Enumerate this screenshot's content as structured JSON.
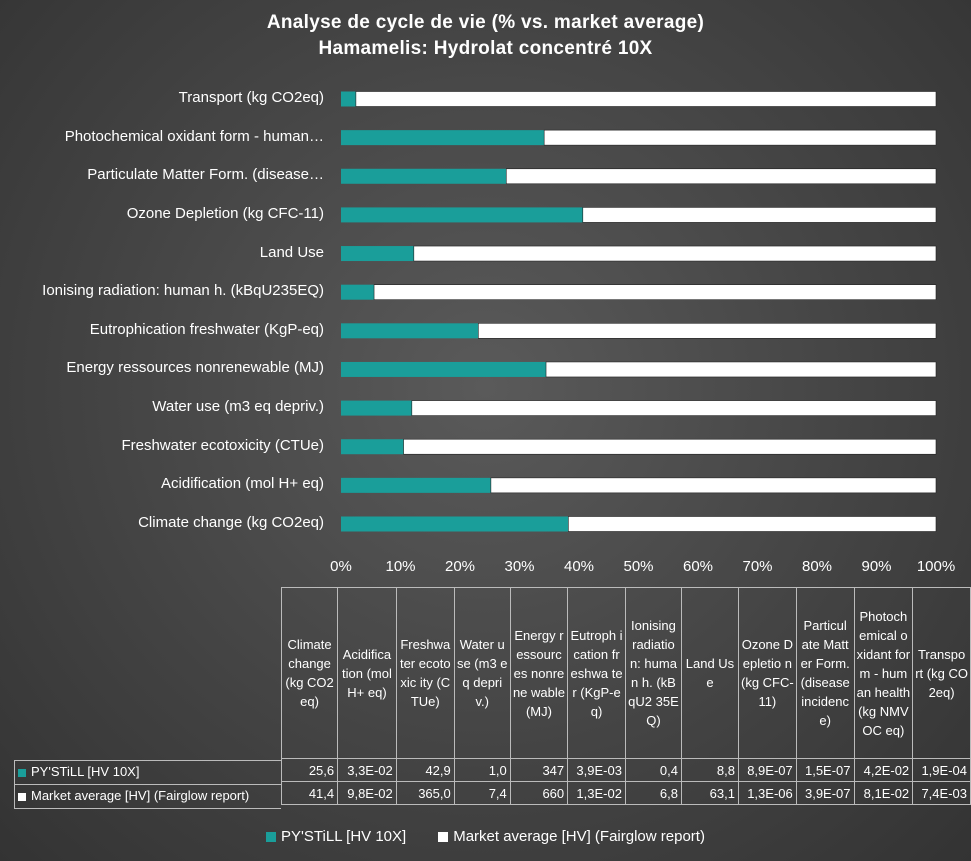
{
  "chart_data": {
    "type": "bar",
    "stacking": "percent",
    "orientation": "horizontal",
    "title": [
      "Analyse de cycle de vie  (% vs. market average)",
      "Hamamelis: Hydrolat concentré 10X"
    ],
    "categories": [
      "Climate change (kg CO2eq)",
      "Acidification (mol H+ eq)",
      "Freshwater ecotoxicity (CTUe)",
      "Water use (m3 eq depriv.)",
      "Energy ressources nonrenewable (MJ)",
      "Eutrophication freshwater (KgP-eq)",
      "Ionising radiation: human h. (kBqU235EQ)",
      "Land Use",
      "Ozone Depletion (kg CFC-11)",
      "Particulate Matter Form. (disease…",
      "Photochemical oxidant form - human…",
      "Transport (kg CO2eq)"
    ],
    "table_headers": [
      "Climate change (kg CO2eq)",
      "Acidifica tion (mol H+ eq)",
      "Freshwa ter ecotoxic ity (CTUe)",
      "Water use (m3 eq depriv.)",
      "Energy ressourc es nonrene wable (MJ)",
      "Eutroph ication freshwa ter (KgP-eq)",
      "Ionising radiatio n: human h. (kBqU2 35EQ)",
      "Land Use",
      "Ozone Depletio n (kg CFC-11)",
      "Particul ate Matter Form. (disease incidenc e)",
      "Photoch emical oxidant form - human health (kg NMVOC eq)",
      "Transpo rt (kg CO2eq)"
    ],
    "series": [
      {
        "name": "PY'STiLL [HV 10X]",
        "color": "#1a9e9a",
        "values": [
          25.6,
          0.033,
          42.9,
          1.0,
          347,
          0.0039,
          0.4,
          8.8,
          8.9e-07,
          1.5e-07,
          0.042,
          0.00019
        ],
        "labels": [
          "25,6",
          "3,3E-02",
          "42,9",
          "1,0",
          "347",
          "3,9E-03",
          "0,4",
          "8,8",
          "8,9E-07",
          "1,5E-07",
          "4,2E-02",
          "1,9E-04"
        ]
      },
      {
        "name": "Market average [HV] (Fairglow report)",
        "color": "#ffffff",
        "values": [
          41.4,
          0.098,
          365.0,
          7.4,
          660,
          0.013,
          6.8,
          63.1,
          1.3e-06,
          3.9e-07,
          0.081,
          0.0074
        ],
        "labels": [
          "41,4",
          "9,8E-02",
          "365,0",
          "7,4",
          "660",
          "1,3E-02",
          "6,8",
          "63,1",
          "1,3E-06",
          "3,9E-07",
          "8,1E-02",
          "7,4E-03"
        ]
      }
    ],
    "xlim": [
      0,
      100
    ],
    "x_ticks": [
      "0%",
      "10%",
      "20%",
      "30%",
      "40%",
      "50%",
      "60%",
      "70%",
      "80%",
      "90%",
      "100%"
    ],
    "legend_position": "bottom"
  }
}
